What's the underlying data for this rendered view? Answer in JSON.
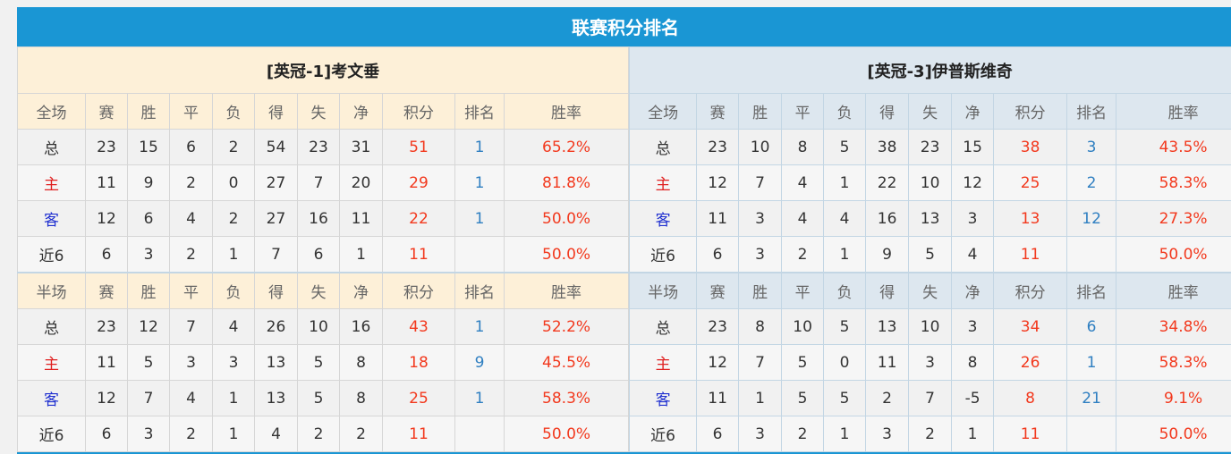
{
  "title": "联赛积分排名",
  "colors": {
    "accent": "#1a96d4",
    "points": "#f2391e",
    "rank": "#2f7fc1"
  },
  "columns": [
    "赛",
    "胜",
    "平",
    "负",
    "得",
    "失",
    "净",
    "积分",
    "排名",
    "胜率"
  ],
  "teams": [
    {
      "name": "[英冠-1]考文垂",
      "full": {
        "label": "全场",
        "rows": [
          [
            "总",
            "23",
            "15",
            "6",
            "2",
            "54",
            "23",
            "31",
            "51",
            "1",
            "65.2%"
          ],
          [
            "主",
            "11",
            "9",
            "2",
            "0",
            "27",
            "7",
            "20",
            "29",
            "1",
            "81.8%"
          ],
          [
            "客",
            "12",
            "6",
            "4",
            "2",
            "27",
            "16",
            "11",
            "22",
            "1",
            "50.0%"
          ],
          [
            "近6",
            "6",
            "3",
            "2",
            "1",
            "7",
            "6",
            "1",
            "11",
            "",
            "50.0%"
          ]
        ]
      },
      "half": {
        "label": "半场",
        "rows": [
          [
            "总",
            "23",
            "12",
            "7",
            "4",
            "26",
            "10",
            "16",
            "43",
            "1",
            "52.2%"
          ],
          [
            "主",
            "11",
            "5",
            "3",
            "3",
            "13",
            "5",
            "8",
            "18",
            "9",
            "45.5%"
          ],
          [
            "客",
            "12",
            "7",
            "4",
            "1",
            "13",
            "5",
            "8",
            "25",
            "1",
            "58.3%"
          ],
          [
            "近6",
            "6",
            "3",
            "2",
            "1",
            "4",
            "2",
            "2",
            "11",
            "",
            "50.0%"
          ]
        ]
      }
    },
    {
      "name": "[英冠-3]伊普斯维奇",
      "full": {
        "label": "全场",
        "rows": [
          [
            "总",
            "23",
            "10",
            "8",
            "5",
            "38",
            "23",
            "15",
            "38",
            "3",
            "43.5%"
          ],
          [
            "主",
            "12",
            "7",
            "4",
            "1",
            "22",
            "10",
            "12",
            "25",
            "2",
            "58.3%"
          ],
          [
            "客",
            "11",
            "3",
            "4",
            "4",
            "16",
            "13",
            "3",
            "13",
            "12",
            "27.3%"
          ],
          [
            "近6",
            "6",
            "3",
            "2",
            "1",
            "9",
            "5",
            "4",
            "11",
            "",
            "50.0%"
          ]
        ]
      },
      "half": {
        "label": "半场",
        "rows": [
          [
            "总",
            "23",
            "8",
            "10",
            "5",
            "13",
            "10",
            "3",
            "34",
            "6",
            "34.8%"
          ],
          [
            "主",
            "12",
            "7",
            "5",
            "0",
            "11",
            "3",
            "8",
            "26",
            "1",
            "58.3%"
          ],
          [
            "客",
            "11",
            "1",
            "5",
            "5",
            "2",
            "7",
            "-5",
            "8",
            "21",
            "9.1%"
          ],
          [
            "近6",
            "6",
            "3",
            "2",
            "1",
            "3",
            "2",
            "1",
            "11",
            "",
            "50.0%"
          ]
        ]
      }
    }
  ]
}
